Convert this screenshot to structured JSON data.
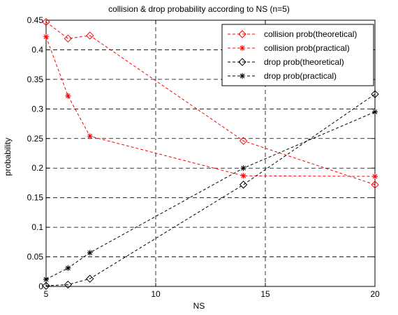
{
  "chart_data": {
    "type": "line",
    "title": "collision & drop probability according to NS (n=5)",
    "xlabel": "NS",
    "ylabel": "probability",
    "xlim": [
      5,
      20
    ],
    "ylim": [
      0,
      0.45
    ],
    "xticks": [
      5,
      10,
      15,
      20
    ],
    "yticks": [
      0,
      0.05,
      0.1,
      0.15,
      0.2,
      0.25,
      0.3,
      0.35,
      0.4,
      0.45
    ],
    "grid": true,
    "legend_position": "top-right",
    "series": [
      {
        "name": "collision prob(theoretical)",
        "color": "#ff0000",
        "marker": "diamond",
        "x": [
          5,
          6,
          7,
          14,
          20
        ],
        "y": [
          0.447,
          0.419,
          0.424,
          0.246,
          0.172
        ]
      },
      {
        "name": "collision prob(practical)",
        "color": "#ff0000",
        "marker": "star",
        "x": [
          5,
          6,
          7,
          14,
          20
        ],
        "y": [
          0.422,
          0.322,
          0.254,
          0.187,
          0.186
        ]
      },
      {
        "name": "drop prob(theoretical)",
        "color": "#000000",
        "marker": "diamond",
        "x": [
          5,
          6,
          7,
          14,
          20
        ],
        "y": [
          0.001,
          0.003,
          0.013,
          0.172,
          0.325
        ]
      },
      {
        "name": "drop prob(practical)",
        "color": "#000000",
        "marker": "star",
        "x": [
          5,
          6,
          7,
          14,
          20
        ],
        "y": [
          0.012,
          0.031,
          0.057,
          0.2,
          0.295
        ]
      }
    ]
  }
}
